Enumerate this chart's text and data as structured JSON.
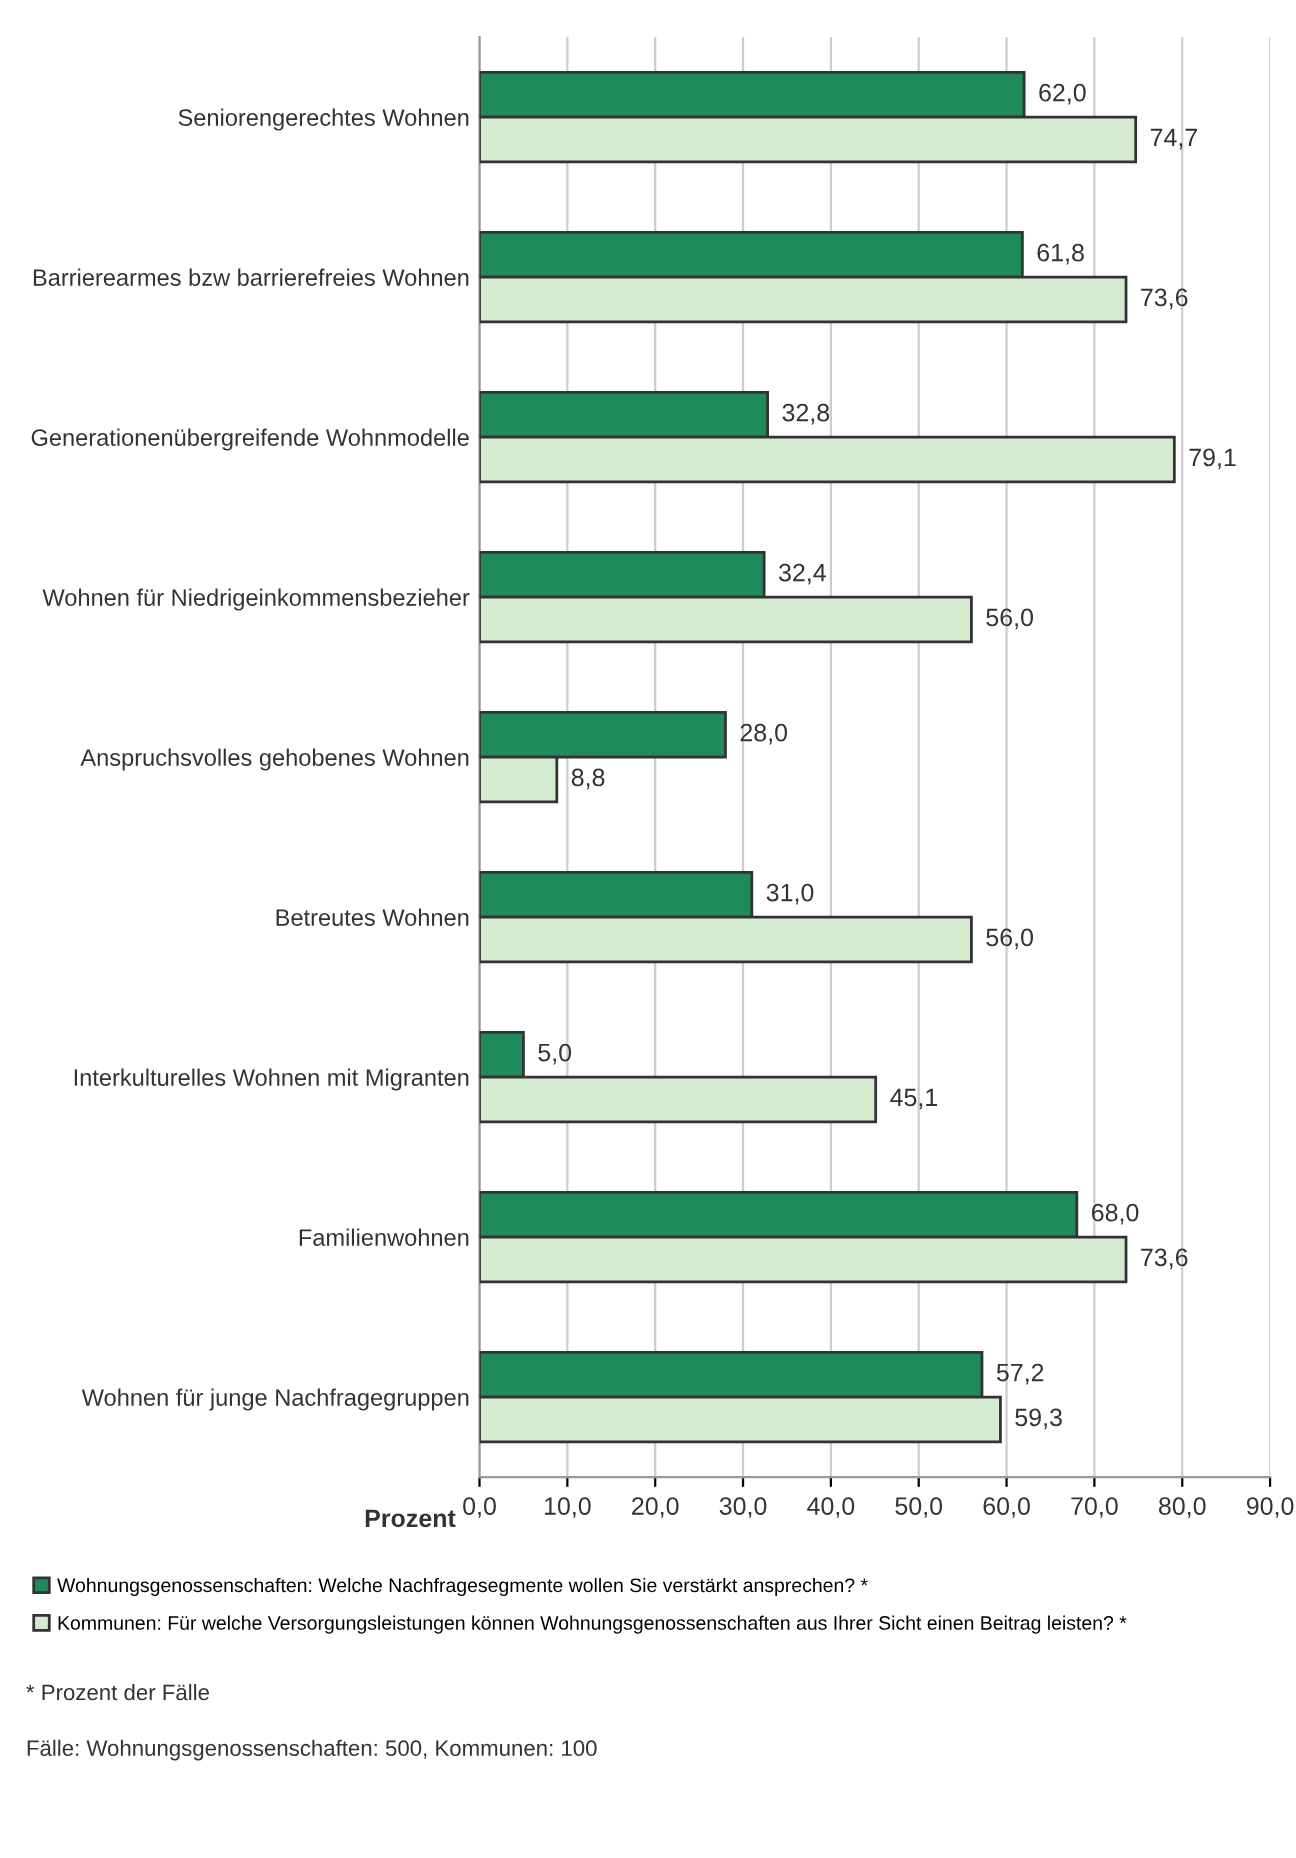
{
  "chart_data": {
    "type": "bar",
    "orientation": "horizontal",
    "categories": [
      "Seniorengerechtes Wohnen",
      "Barrierearmes bzw barrierefreies Wohnen",
      "Generationenübergreifende Wohnmodelle",
      "Wohnen für Niedrigeinkommensbezieher",
      "Anspruchsvolles gehobenes Wohnen",
      "Betreutes Wohnen",
      "Interkulturelles Wohnen mit Migranten",
      "Familienwohnen",
      "Wohnen für junge Nachfragegruppen"
    ],
    "series": [
      {
        "name": "Wohnungsgenossenschaften: Welche Nachfragesegmente wollen Sie verstärkt ansprechen? *",
        "color": "#1f8a5c",
        "values": [
          62.0,
          61.8,
          32.8,
          32.4,
          28.0,
          31.0,
          5.0,
          68.0,
          57.2
        ],
        "value_labels": [
          "62,0",
          "61,8",
          "32,8",
          "32,4",
          "28,0",
          "31,0",
          "5,0",
          "68,0",
          "57,2"
        ]
      },
      {
        "name": "Kommunen: Für welche Versorgungsleistungen können Wohnungsgenossenschaften aus Ihrer Sicht einen Beitrag leisten? *",
        "color": "#d4ebd0",
        "values": [
          74.7,
          73.6,
          79.1,
          56.0,
          8.8,
          56.0,
          45.1,
          73.6,
          59.3
        ],
        "value_labels": [
          "74,7",
          "73,6",
          "79,1",
          "56,0",
          "8,8",
          "56,0",
          "45,1",
          "73,6",
          "59,3"
        ]
      }
    ],
    "xlabel": "Prozent",
    "xlim": [
      0,
      90
    ],
    "xticks": [
      {
        "value": 0,
        "label": "0,0"
      },
      {
        "value": 10,
        "label": "10,0"
      },
      {
        "value": 20,
        "label": "20,0"
      },
      {
        "value": 30,
        "label": "30,0"
      },
      {
        "value": 40,
        "label": "40,0"
      },
      {
        "value": 50,
        "label": "50,0"
      },
      {
        "value": 60,
        "label": "60,0"
      },
      {
        "value": 70,
        "label": "70,0"
      },
      {
        "value": 80,
        "label": "80,0"
      },
      {
        "value": 90,
        "label": "90,0"
      }
    ],
    "grid": "x",
    "legend": "bottom",
    "annotations": [
      "* Prozent der Fälle",
      "Fälle: Wohnungsgenossenschaften: 500, Kommunen: 100"
    ]
  }
}
